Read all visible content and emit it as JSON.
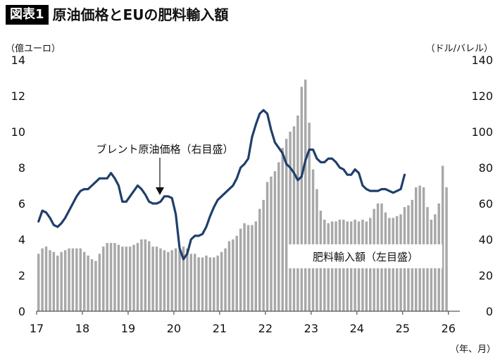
{
  "header": {
    "badge": "図表1",
    "title": "原油価格とEUの肥料輸入額"
  },
  "chart_data": {
    "type": "bar",
    "left_unit": "（億ユーロ）",
    "right_unit": "（ドル/バレル）",
    "x_unit": "（年、月）",
    "x_tick_labels": [
      "17",
      "18",
      "19",
      "20",
      "21",
      "22",
      "23",
      "24",
      "25",
      "26"
    ],
    "left_ticks": [
      "0",
      "2",
      "4",
      "6",
      "8",
      "10",
      "12",
      "14"
    ],
    "right_ticks": [
      "0",
      "20",
      "40",
      "60",
      "80",
      "100",
      "120",
      "140"
    ],
    "ylim_left": [
      0,
      14
    ],
    "ylim_right": [
      0,
      140
    ],
    "start": "2017-01",
    "series": [
      {
        "name": "肥料輸入額（左目盛）",
        "axis": "left",
        "style": "bar",
        "color": "#a8a8a8",
        "values": [
          3.2,
          3.5,
          3.6,
          3.4,
          3.3,
          3.1,
          3.3,
          3.4,
          3.5,
          3.5,
          3.5,
          3.5,
          3.3,
          3.1,
          2.9,
          2.8,
          3.2,
          3.6,
          3.8,
          3.8,
          3.8,
          3.7,
          3.6,
          3.6,
          3.6,
          3.7,
          3.8,
          4.0,
          4.0,
          3.9,
          3.6,
          3.6,
          3.5,
          3.4,
          3.3,
          3.4,
          3.5,
          3.4,
          3.6,
          3.5,
          3.2,
          3.2,
          3.0,
          3.0,
          3.1,
          3.0,
          3.0,
          3.1,
          3.3,
          3.5,
          3.9,
          4.0,
          4.2,
          4.6,
          4.9,
          4.8,
          4.8,
          5.0,
          5.7,
          6.2,
          7.2,
          7.5,
          7.8,
          8.3,
          9.1,
          9.6,
          10.0,
          10.3,
          10.9,
          12.5,
          12.9,
          10.5,
          7.9,
          6.8,
          5.6,
          5.1,
          4.9,
          5.0,
          5.0,
          5.1,
          5.1,
          5.0,
          5.0,
          5.1,
          5.0,
          5.1,
          5.0,
          5.2,
          5.7,
          6.0,
          6.0,
          5.5,
          5.2,
          5.2,
          5.3,
          5.4,
          5.8,
          5.9,
          6.2,
          6.9,
          7.0,
          6.9,
          5.8,
          5.1,
          5.4,
          6.0,
          8.1,
          6.9
        ]
      },
      {
        "name": "ブレント原油価格（右目盛）",
        "axis": "right",
        "style": "line",
        "color": "#1f3f6b",
        "values": [
          50,
          56,
          55,
          52,
          48,
          47,
          49,
          52,
          56,
          60,
          64,
          67,
          68,
          68,
          70,
          72,
          74,
          74,
          74,
          77,
          74,
          70,
          61,
          61,
          64,
          67,
          70,
          68,
          65,
          61,
          60,
          60,
          61,
          64,
          64,
          63,
          54,
          35,
          29,
          32,
          40,
          42,
          42,
          43,
          47,
          53,
          58,
          62,
          64,
          66,
          68,
          70,
          74,
          80,
          82,
          85,
          97,
          104,
          110,
          112,
          110,
          101,
          94,
          91,
          88,
          82,
          80,
          77,
          73,
          75,
          84,
          90,
          90,
          85,
          83,
          83,
          85,
          85,
          83,
          80,
          79,
          76,
          76,
          79,
          77,
          70,
          68,
          67,
          67,
          67,
          68,
          68,
          67,
          66,
          67,
          68,
          76
        ]
      }
    ],
    "annotations": [
      {
        "text": "ブレント原油価格（右目盛）"
      },
      {
        "text": "肥料輸入額（左目盛）"
      }
    ]
  }
}
